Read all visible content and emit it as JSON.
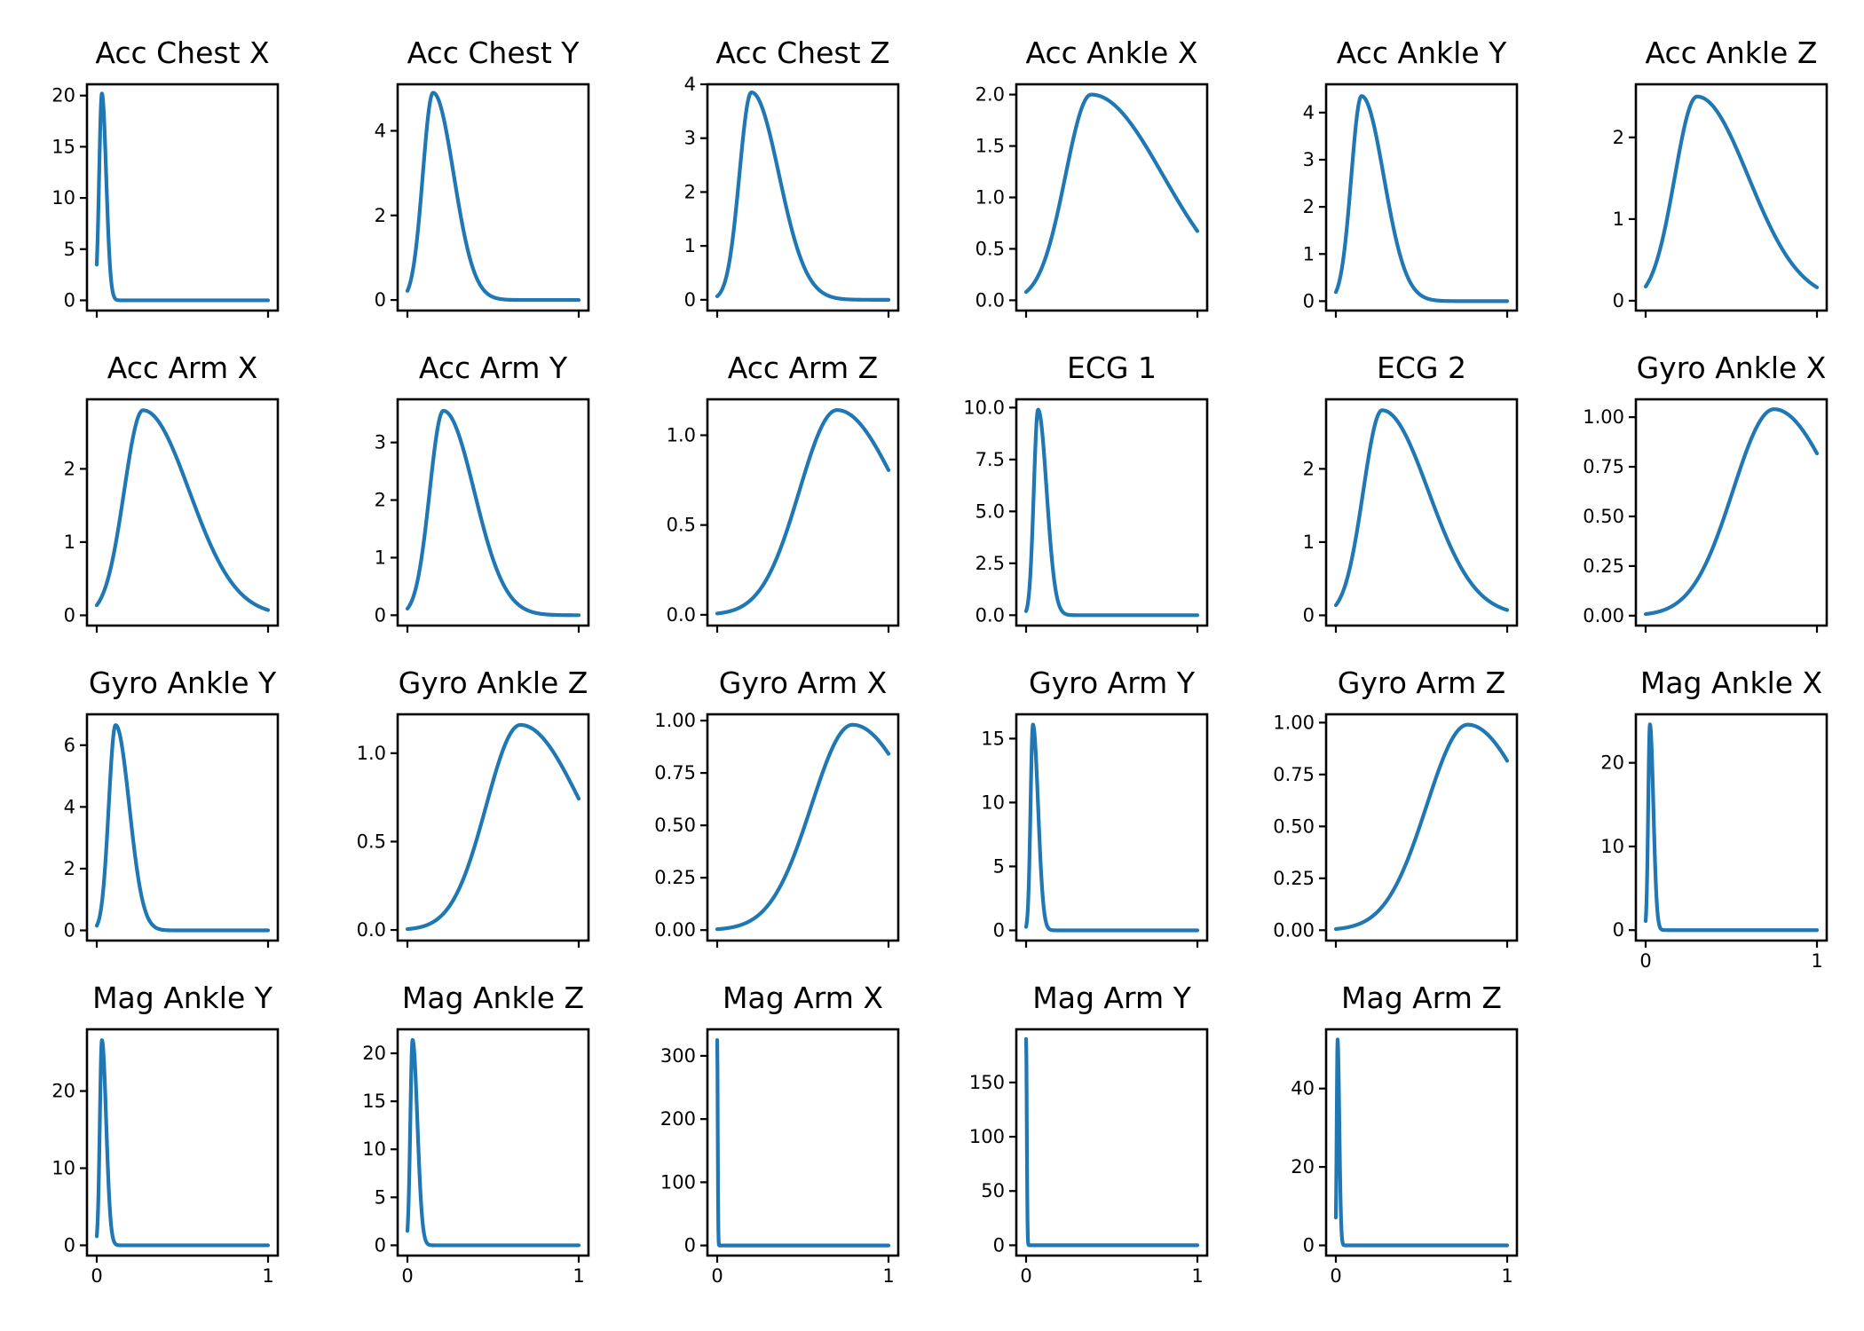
{
  "chart_data": {
    "type": "line",
    "layout_grid": "4 rows x 6 columns",
    "line_color": "#1f77b4",
    "shared_x": {
      "ticks": [
        0,
        1
      ],
      "tick_labels": [
        "0",
        "1"
      ]
    },
    "panels": [
      {
        "title": "Acc Chest X",
        "peak_x": 0.03,
        "peak_y": 20.2,
        "left_width": 0.016,
        "right_width": 0.025,
        "ylim": [
          -1.0,
          21.1
        ],
        "yticks": [
          0,
          5,
          10,
          15,
          20
        ],
        "ytick_labels": [
          "0",
          "5",
          "10",
          "15",
          "20"
        ]
      },
      {
        "title": "Acc Chest Y",
        "peak_x": 0.15,
        "peak_y": 4.9,
        "left_width": 0.06,
        "right_width": 0.12,
        "ylim": [
          -0.25,
          5.1
        ],
        "yticks": [
          0,
          2,
          4
        ],
        "ytick_labels": [
          "0",
          "2",
          "4"
        ]
      },
      {
        "title": "Acc Chest Z",
        "peak_x": 0.2,
        "peak_y": 3.85,
        "left_width": 0.07,
        "right_width": 0.16,
        "ylim": [
          -0.2,
          4.0
        ],
        "yticks": [
          0,
          1,
          2,
          3,
          4
        ],
        "ytick_labels": [
          "0",
          "1",
          "2",
          "3",
          "4"
        ]
      },
      {
        "title": "Acc Ankle X",
        "peak_x": 0.38,
        "peak_y": 2.0,
        "left_width": 0.15,
        "right_width": 0.42,
        "ylim": [
          -0.1,
          2.1
        ],
        "yticks": [
          0,
          0.5,
          1.0,
          1.5,
          2.0
        ],
        "ytick_labels": [
          "0.0",
          "0.5",
          "1.0",
          "1.5",
          "2.0"
        ]
      },
      {
        "title": "Acc Ankle Y",
        "peak_x": 0.15,
        "peak_y": 4.35,
        "left_width": 0.06,
        "right_width": 0.13,
        "ylim": [
          -0.2,
          4.6
        ],
        "yticks": [
          0,
          1,
          2,
          3,
          4
        ],
        "ytick_labels": [
          "0",
          "1",
          "2",
          "3",
          "4"
        ]
      },
      {
        "title": "Acc Ankle Z",
        "peak_x": 0.3,
        "peak_y": 2.5,
        "left_width": 0.13,
        "right_width": 0.3,
        "ylim": [
          -0.12,
          2.65
        ],
        "yticks": [
          0,
          1,
          2
        ],
        "ytick_labels": [
          "0",
          "1",
          "2"
        ]
      },
      {
        "title": "Acc Arm X",
        "peak_x": 0.27,
        "peak_y": 2.8,
        "left_width": 0.11,
        "right_width": 0.27,
        "ylim": [
          -0.14,
          2.95
        ],
        "yticks": [
          0,
          1,
          2
        ],
        "ytick_labels": [
          "0",
          "1",
          "2"
        ]
      },
      {
        "title": "Acc Arm Y",
        "peak_x": 0.21,
        "peak_y": 3.55,
        "left_width": 0.08,
        "right_width": 0.18,
        "ylim": [
          -0.18,
          3.75
        ],
        "yticks": [
          0,
          1,
          2,
          3
        ],
        "ytick_labels": [
          "0",
          "1",
          "2",
          "3"
        ]
      },
      {
        "title": "Acc Arm Z",
        "peak_x": 0.7,
        "peak_y": 1.14,
        "left_width": 0.22,
        "right_width": 0.36,
        "ylim": [
          -0.06,
          1.2
        ],
        "yticks": [
          0,
          0.5,
          1.0
        ],
        "ytick_labels": [
          "0.0",
          "0.5",
          "1.0"
        ]
      },
      {
        "title": "ECG 1",
        "peak_x": 0.07,
        "peak_y": 9.9,
        "left_width": 0.025,
        "right_width": 0.05,
        "ylim": [
          -0.5,
          10.4
        ],
        "yticks": [
          0,
          2.5,
          5.0,
          7.5,
          10.0
        ],
        "ytick_labels": [
          "0.0",
          "2.5",
          "5.0",
          "7.5",
          "10.0"
        ]
      },
      {
        "title": "ECG 2",
        "peak_x": 0.27,
        "peak_y": 2.8,
        "left_width": 0.11,
        "right_width": 0.27,
        "ylim": [
          -0.14,
          2.95
        ],
        "yticks": [
          0,
          1,
          2
        ],
        "ytick_labels": [
          "0",
          "1",
          "2"
        ]
      },
      {
        "title": "Gyro Ankle X",
        "peak_x": 0.75,
        "peak_y": 1.04,
        "left_width": 0.24,
        "right_width": 0.36,
        "ylim": [
          -0.05,
          1.09
        ],
        "yticks": [
          0,
          0.25,
          0.5,
          0.75,
          1.0
        ],
        "ytick_labels": [
          "0.00",
          "0.25",
          "0.50",
          "0.75",
          "1.00"
        ]
      },
      {
        "title": "Gyro Ankle Y",
        "peak_x": 0.11,
        "peak_y": 6.65,
        "left_width": 0.04,
        "right_width": 0.08,
        "ylim": [
          -0.33,
          7.0
        ],
        "yticks": [
          0,
          2,
          4,
          6
        ],
        "ytick_labels": [
          "0",
          "2",
          "4",
          "6"
        ]
      },
      {
        "title": "Gyro Ankle Z",
        "peak_x": 0.66,
        "peak_y": 1.16,
        "left_width": 0.2,
        "right_width": 0.36,
        "ylim": [
          -0.06,
          1.22
        ],
        "yticks": [
          0,
          0.5,
          1.0
        ],
        "ytick_labels": [
          "0.0",
          "0.5",
          "1.0"
        ]
      },
      {
        "title": "Gyro Arm X",
        "peak_x": 0.79,
        "peak_y": 0.98,
        "left_width": 0.24,
        "right_width": 0.38,
        "ylim": [
          -0.05,
          1.03
        ],
        "yticks": [
          0,
          0.25,
          0.5,
          0.75,
          1.0
        ],
        "ytick_labels": [
          "0.00",
          "0.25",
          "0.50",
          "0.75",
          "1.00"
        ]
      },
      {
        "title": "Gyro Arm Y",
        "peak_x": 0.04,
        "peak_y": 16.1,
        "left_width": 0.014,
        "right_width": 0.03,
        "ylim": [
          -0.8,
          16.9
        ],
        "yticks": [
          0,
          5,
          10,
          15
        ],
        "ytick_labels": [
          "0",
          "5",
          "10",
          "15"
        ]
      },
      {
        "title": "Gyro Arm Z",
        "peak_x": 0.77,
        "peak_y": 0.99,
        "left_width": 0.24,
        "right_width": 0.37,
        "ylim": [
          -0.05,
          1.04
        ],
        "yticks": [
          0,
          0.25,
          0.5,
          0.75,
          1.0
        ],
        "ytick_labels": [
          "0.00",
          "0.25",
          "0.50",
          "0.75",
          "1.00"
        ]
      },
      {
        "title": "Mag Ankle X",
        "peak_x": 0.025,
        "peak_y": 24.6,
        "left_width": 0.01,
        "right_width": 0.02,
        "ylim": [
          -1.25,
          25.8
        ],
        "yticks": [
          0,
          10,
          20
        ],
        "ytick_labels": [
          "0",
          "10",
          "20"
        ]
      },
      {
        "title": "Mag Ankle Y",
        "peak_x": 0.03,
        "peak_y": 26.6,
        "left_width": 0.012,
        "right_width": 0.025,
        "ylim": [
          -1.33,
          28.0
        ],
        "yticks": [
          0,
          10,
          20
        ],
        "ytick_labels": [
          "0",
          "10",
          "20"
        ]
      },
      {
        "title": "Mag Ankle Z",
        "peak_x": 0.03,
        "peak_y": 21.4,
        "left_width": 0.013,
        "right_width": 0.028,
        "ylim": [
          -1.07,
          22.5
        ],
        "yticks": [
          0,
          5,
          10,
          15,
          20
        ],
        "ytick_labels": [
          "0",
          "5",
          "10",
          "15",
          "20"
        ]
      },
      {
        "title": "Mag Arm X",
        "peak_x": 0.0,
        "peak_y": 325,
        "left_width": 0.001,
        "right_width": 0.003,
        "ylim": [
          -16,
          342
        ],
        "yticks": [
          0,
          100,
          200,
          300
        ],
        "ytick_labels": [
          "0",
          "100",
          "200",
          "300"
        ]
      },
      {
        "title": "Mag Arm Y",
        "peak_x": 0.0,
        "peak_y": 190,
        "left_width": 0.001,
        "right_width": 0.004,
        "ylim": [
          -9.5,
          199
        ],
        "yticks": [
          0,
          50,
          100,
          150
        ],
        "ytick_labels": [
          "0",
          "50",
          "100",
          "150"
        ]
      },
      {
        "title": "Mag Arm Z",
        "peak_x": 0.01,
        "peak_y": 52.5,
        "left_width": 0.005,
        "right_width": 0.01,
        "ylim": [
          -2.6,
          55.1
        ],
        "yticks": [
          0,
          20,
          40
        ],
        "ytick_labels": [
          "0",
          "20",
          "40"
        ]
      }
    ]
  }
}
